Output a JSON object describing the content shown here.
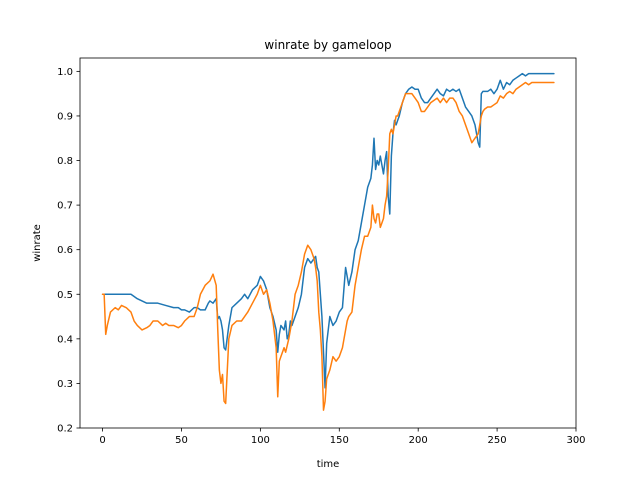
{
  "chart_data": {
    "type": "line",
    "title": "winrate by gameloop",
    "xlabel": "time",
    "ylabel": "winrate",
    "xlim": [
      -14.3,
      300
    ],
    "ylim": [
      0.2,
      1.03
    ],
    "xticks": [
      0,
      50,
      100,
      150,
      200,
      250,
      300
    ],
    "yticks": [
      0.2,
      0.3,
      0.4,
      0.5,
      0.6,
      0.7,
      0.8,
      0.9,
      1.0
    ],
    "grid": false,
    "legend": "none",
    "series": [
      {
        "color": "#1f77b4",
        "x": [
          0,
          1,
          2,
          3,
          5,
          10,
          15,
          18,
          20,
          22,
          25,
          28,
          30,
          35,
          40,
          45,
          48,
          50,
          52,
          55,
          58,
          60,
          62,
          65,
          67,
          68,
          70,
          72,
          73,
          74,
          75,
          76,
          77,
          78,
          80,
          82,
          85,
          88,
          90,
          92,
          95,
          98,
          100,
          102,
          104,
          106,
          108,
          110,
          111,
          112,
          113,
          115,
          116,
          117,
          118,
          119,
          120,
          122,
          124,
          126,
          128,
          130,
          132,
          134,
          135,
          136,
          137,
          138,
          139,
          140,
          141,
          142,
          143,
          144,
          146,
          148,
          150,
          152,
          154,
          155,
          156,
          158,
          160,
          162,
          164,
          166,
          168,
          170,
          171,
          172,
          173,
          174,
          175,
          176,
          177,
          178,
          179,
          180,
          181,
          182,
          183,
          184,
          185,
          186,
          187,
          188,
          190,
          192,
          194,
          196,
          198,
          200,
          202,
          204,
          206,
          208,
          210,
          212,
          214,
          216,
          218,
          220,
          222,
          224,
          226,
          228,
          230,
          232,
          234,
          236,
          238,
          239,
          240,
          241,
          242,
          244,
          246,
          248,
          250,
          252,
          254,
          256,
          258,
          260,
          262,
          264,
          266,
          268,
          270,
          272,
          275,
          278,
          280,
          283,
          286
        ],
        "y": [
          0.5,
          0.5,
          0.5,
          0.5,
          0.5,
          0.5,
          0.5,
          0.5,
          0.495,
          0.49,
          0.485,
          0.48,
          0.48,
          0.48,
          0.475,
          0.47,
          0.47,
          0.465,
          0.465,
          0.46,
          0.47,
          0.47,
          0.465,
          0.465,
          0.48,
          0.485,
          0.48,
          0.49,
          0.445,
          0.45,
          0.44,
          0.42,
          0.38,
          0.375,
          0.43,
          0.47,
          0.48,
          0.49,
          0.5,
          0.49,
          0.51,
          0.52,
          0.54,
          0.53,
          0.51,
          0.47,
          0.45,
          0.42,
          0.37,
          0.41,
          0.43,
          0.42,
          0.44,
          0.4,
          0.41,
          0.44,
          0.43,
          0.45,
          0.47,
          0.5,
          0.56,
          0.58,
          0.57,
          0.58,
          0.585,
          0.56,
          0.55,
          0.5,
          0.45,
          0.37,
          0.29,
          0.39,
          0.42,
          0.45,
          0.43,
          0.44,
          0.46,
          0.47,
          0.56,
          0.54,
          0.52,
          0.55,
          0.6,
          0.62,
          0.66,
          0.7,
          0.74,
          0.76,
          0.79,
          0.85,
          0.78,
          0.8,
          0.79,
          0.81,
          0.79,
          0.77,
          0.8,
          0.82,
          0.72,
          0.68,
          0.81,
          0.86,
          0.89,
          0.88,
          0.89,
          0.9,
          0.93,
          0.95,
          0.96,
          0.965,
          0.96,
          0.96,
          0.94,
          0.93,
          0.93,
          0.94,
          0.95,
          0.96,
          0.95,
          0.945,
          0.96,
          0.955,
          0.96,
          0.955,
          0.96,
          0.94,
          0.92,
          0.91,
          0.9,
          0.88,
          0.84,
          0.83,
          0.95,
          0.955,
          0.955,
          0.955,
          0.96,
          0.95,
          0.96,
          0.98,
          0.96,
          0.975,
          0.97,
          0.98,
          0.985,
          0.99,
          0.995,
          0.99,
          0.995,
          0.995,
          0.995,
          0.995,
          0.995,
          0.995,
          0.995
        ]
      },
      {
        "color": "#ff7f0e",
        "x": [
          0,
          1,
          2,
          3,
          5,
          8,
          10,
          12,
          15,
          18,
          20,
          22,
          25,
          28,
          30,
          32,
          35,
          38,
          40,
          42,
          45,
          48,
          50,
          52,
          55,
          58,
          60,
          62,
          65,
          68,
          70,
          72,
          73,
          74,
          75,
          76,
          77,
          78,
          80,
          82,
          85,
          88,
          90,
          92,
          95,
          98,
          100,
          102,
          104,
          106,
          108,
          110,
          111,
          112,
          113,
          115,
          116,
          118,
          120,
          122,
          124,
          126,
          128,
          130,
          132,
          134,
          135,
          136,
          137,
          138,
          139,
          140,
          141,
          142,
          143,
          144,
          146,
          148,
          150,
          152,
          154,
          155,
          156,
          158,
          160,
          162,
          164,
          166,
          168,
          170,
          171,
          172,
          173,
          174,
          175,
          176,
          177,
          178,
          179,
          180,
          181,
          182,
          183,
          184,
          185,
          186,
          187,
          188,
          190,
          192,
          194,
          196,
          198,
          200,
          202,
          204,
          206,
          208,
          210,
          212,
          214,
          216,
          218,
          220,
          222,
          224,
          226,
          228,
          230,
          232,
          234,
          236,
          238,
          240,
          241,
          242,
          244,
          246,
          248,
          250,
          252,
          254,
          256,
          258,
          260,
          262,
          264,
          266,
          268,
          270,
          272,
          275,
          278,
          280,
          283,
          286
        ],
        "y": [
          0.5,
          0.5,
          0.41,
          0.43,
          0.46,
          0.47,
          0.465,
          0.475,
          0.47,
          0.46,
          0.44,
          0.43,
          0.42,
          0.425,
          0.43,
          0.44,
          0.44,
          0.43,
          0.435,
          0.43,
          0.43,
          0.425,
          0.43,
          0.44,
          0.45,
          0.45,
          0.47,
          0.5,
          0.52,
          0.53,
          0.545,
          0.52,
          0.42,
          0.33,
          0.3,
          0.32,
          0.26,
          0.255,
          0.4,
          0.43,
          0.44,
          0.44,
          0.45,
          0.46,
          0.48,
          0.5,
          0.52,
          0.5,
          0.51,
          0.48,
          0.44,
          0.38,
          0.27,
          0.35,
          0.36,
          0.38,
          0.37,
          0.4,
          0.44,
          0.5,
          0.52,
          0.55,
          0.59,
          0.61,
          0.6,
          0.58,
          0.56,
          0.53,
          0.46,
          0.42,
          0.36,
          0.24,
          0.26,
          0.31,
          0.32,
          0.33,
          0.36,
          0.35,
          0.36,
          0.38,
          0.42,
          0.44,
          0.45,
          0.46,
          0.52,
          0.56,
          0.6,
          0.63,
          0.63,
          0.65,
          0.7,
          0.67,
          0.66,
          0.68,
          0.68,
          0.65,
          0.66,
          0.67,
          0.7,
          0.72,
          0.78,
          0.86,
          0.87,
          0.86,
          0.88,
          0.9,
          0.9,
          0.91,
          0.93,
          0.95,
          0.95,
          0.95,
          0.94,
          0.93,
          0.91,
          0.91,
          0.92,
          0.93,
          0.935,
          0.94,
          0.93,
          0.94,
          0.93,
          0.94,
          0.94,
          0.93,
          0.91,
          0.9,
          0.88,
          0.86,
          0.84,
          0.85,
          0.86,
          0.9,
          0.91,
          0.915,
          0.92,
          0.92,
          0.925,
          0.93,
          0.945,
          0.94,
          0.95,
          0.955,
          0.95,
          0.96,
          0.965,
          0.97,
          0.975,
          0.97,
          0.975,
          0.975,
          0.975,
          0.975,
          0.975,
          0.975
        ]
      }
    ]
  }
}
